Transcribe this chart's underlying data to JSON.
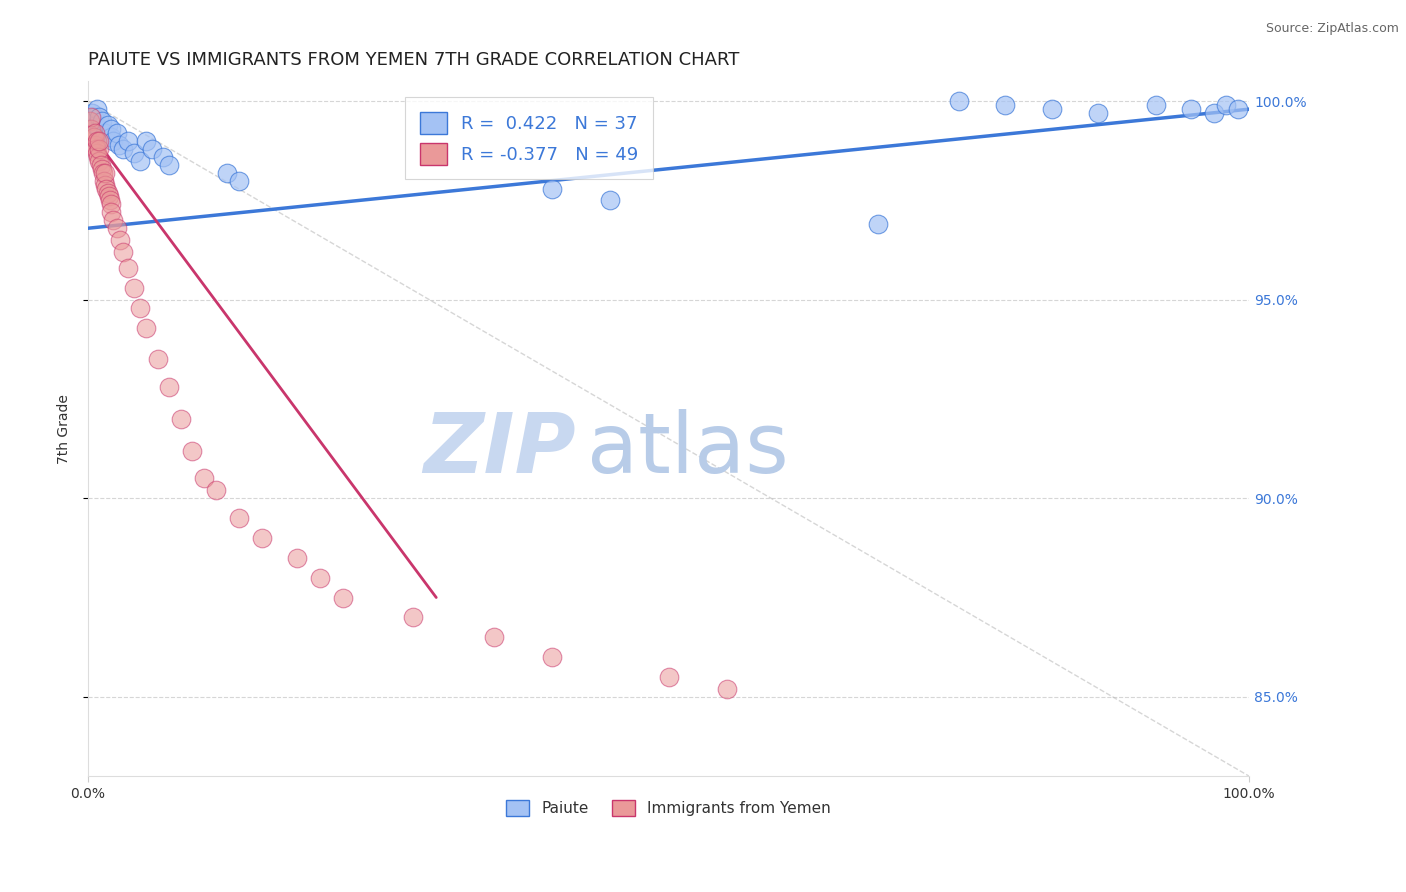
{
  "title": "PAIUTE VS IMMIGRANTS FROM YEMEN 7TH GRADE CORRELATION CHART",
  "source": "Source: ZipAtlas.com",
  "ylabel": "7th Grade",
  "ylabel_right_ticks": [
    "85.0%",
    "90.0%",
    "95.0%",
    "100.0%"
  ],
  "ylabel_right_values": [
    85.0,
    90.0,
    95.0,
    100.0
  ],
  "legend_blue_r": "R =  0.422",
  "legend_blue_n": "N = 37",
  "legend_pink_r": "R = -0.377",
  "legend_pink_n": "N = 49",
  "blue_color": "#a4c2f4",
  "pink_color": "#ea9999",
  "blue_line_color": "#3c78d8",
  "pink_line_color": "#c9366c",
  "blue_scatter": {
    "x": [
      0.3,
      0.4,
      0.5,
      0.7,
      0.8,
      1.0,
      1.0,
      1.2,
      1.5,
      1.7,
      2.0,
      2.0,
      2.2,
      2.5,
      2.7,
      3.0,
      3.5,
      4.0,
      4.5,
      5.0,
      5.5,
      6.5,
      7.0,
      12.0,
      13.0,
      40.0,
      45.0,
      68.0,
      75.0,
      79.0,
      83.0,
      87.0,
      92.0,
      95.0,
      97.0,
      98.0,
      99.0
    ],
    "y": [
      99.5,
      99.7,
      99.6,
      99.4,
      99.8,
      99.3,
      99.6,
      99.5,
      99.2,
      99.4,
      99.1,
      99.3,
      99.0,
      99.2,
      98.9,
      98.8,
      99.0,
      98.7,
      98.5,
      99.0,
      98.8,
      98.6,
      98.4,
      98.2,
      98.0,
      97.8,
      97.5,
      96.9,
      100.0,
      99.9,
      99.8,
      99.7,
      99.9,
      99.8,
      99.7,
      99.9,
      99.8
    ]
  },
  "pink_scatter": {
    "x": [
      0.2,
      0.3,
      0.3,
      0.5,
      0.6,
      0.6,
      0.7,
      0.8,
      0.8,
      0.9,
      1.0,
      1.0,
      1.0,
      1.1,
      1.2,
      1.3,
      1.4,
      1.5,
      1.5,
      1.6,
      1.7,
      1.8,
      1.9,
      2.0,
      2.0,
      2.2,
      2.5,
      2.8,
      3.0,
      3.5,
      4.0,
      4.5,
      5.0,
      6.0,
      7.0,
      8.0,
      9.0,
      10.0,
      11.0,
      13.0,
      15.0,
      18.0,
      20.0,
      22.0,
      28.0,
      35.0,
      40.0,
      50.0,
      55.0
    ],
    "y": [
      99.5,
      99.3,
      99.6,
      99.1,
      98.9,
      99.2,
      98.8,
      98.7,
      99.0,
      98.6,
      98.5,
      98.8,
      99.0,
      98.4,
      98.3,
      98.2,
      98.0,
      97.9,
      98.2,
      97.8,
      97.7,
      97.6,
      97.5,
      97.4,
      97.2,
      97.0,
      96.8,
      96.5,
      96.2,
      95.8,
      95.3,
      94.8,
      94.3,
      93.5,
      92.8,
      92.0,
      91.2,
      90.5,
      90.2,
      89.5,
      89.0,
      88.5,
      88.0,
      87.5,
      87.0,
      86.5,
      86.0,
      85.5,
      85.2
    ]
  },
  "blue_trendline": {
    "x_start": 0.0,
    "x_end": 100.0,
    "y_start": 96.8,
    "y_end": 99.8
  },
  "pink_trendline": {
    "x_start": 0.0,
    "x_end": 30.0,
    "y_start": 99.3,
    "y_end": 87.5
  },
  "diagonal_line": {
    "x_start": 0.0,
    "x_end": 100.0,
    "y_start": 100.0,
    "y_end": 83.0
  },
  "xlim": [
    0.0,
    100.0
  ],
  "ylim": [
    83.0,
    100.5
  ],
  "background_color": "#ffffff",
  "grid_color": "#cccccc",
  "title_fontsize": 13,
  "axis_label_fontsize": 10,
  "source_fontsize": 9,
  "watermark_zip": "ZIP",
  "watermark_atlas": "atlas",
  "watermark_color_zip": "#c8d8f0",
  "watermark_color_atlas": "#b8cce8",
  "watermark_fontsize": 60
}
